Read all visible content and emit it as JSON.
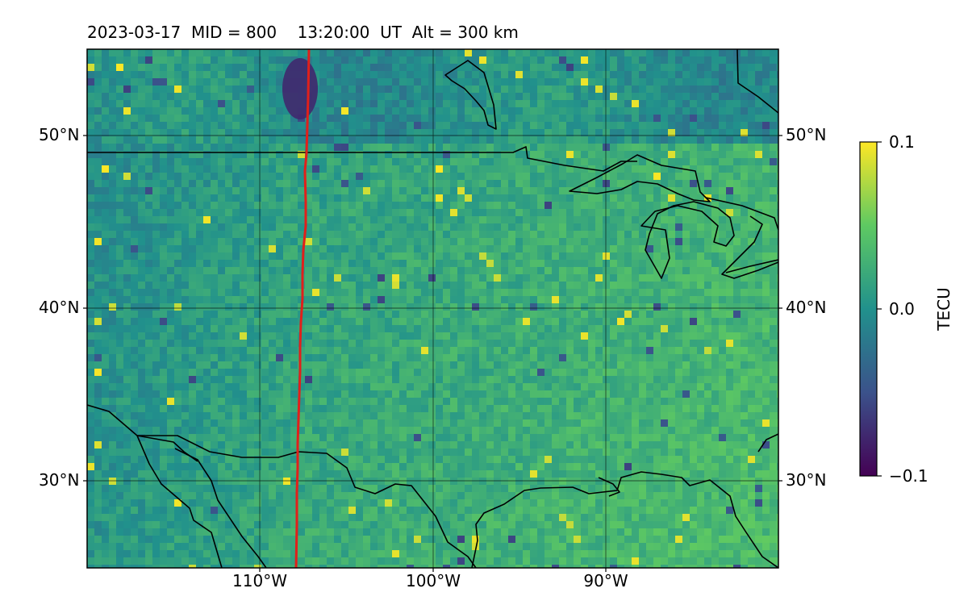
{
  "title": "2023-03-17  MID = 800    13:20:00  UT  Alt = 300 km",
  "map": {
    "lon_range": [
      -120,
      -80
    ],
    "lat_range": [
      25,
      55
    ],
    "lat_ticks": [
      "50°N",
      "40°N",
      "30°N"
    ],
    "lon_ticks": [
      "110°W",
      "100°W",
      "90°W"
    ],
    "track_color": "#e0201b",
    "border_color": "#000000",
    "gridlines": true
  },
  "colorbar": {
    "label": "TECU",
    "ticks": [
      "0.1",
      "0.0",
      "−0.1"
    ],
    "min": -0.1,
    "max": 0.1,
    "colormap": "viridis"
  }
}
